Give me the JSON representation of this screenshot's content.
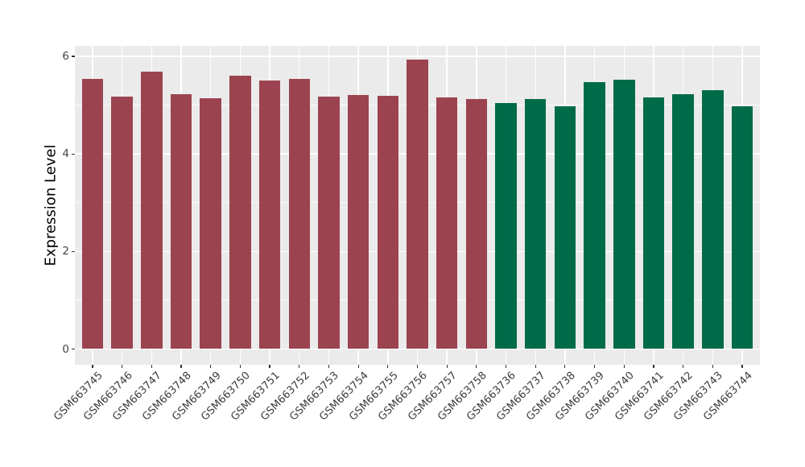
{
  "chart_data": {
    "type": "bar",
    "title": "",
    "xlabel": "",
    "ylabel": "Expression Level",
    "ylim": [
      0,
      6.2
    ],
    "yticks_major": [
      0,
      2,
      4,
      6
    ],
    "yticks_minor": [
      1,
      3,
      5
    ],
    "grid": true,
    "legend_position": "none",
    "categories": [
      "GSM663745",
      "GSM663746",
      "GSM663747",
      "GSM663748",
      "GSM663749",
      "GSM663750",
      "GSM663751",
      "GSM663752",
      "GSM663753",
      "GSM663754",
      "GSM663755",
      "GSM663756",
      "GSM663757",
      "GSM663758",
      "GSM663736",
      "GSM663737",
      "GSM663738",
      "GSM663739",
      "GSM663740",
      "GSM663741",
      "GSM663742",
      "GSM663743",
      "GSM663744"
    ],
    "values": [
      5.54,
      5.18,
      5.69,
      5.23,
      5.15,
      5.61,
      5.5,
      5.53,
      5.18,
      5.2,
      5.19,
      5.93,
      5.16,
      5.13,
      5.05,
      5.12,
      4.97,
      5.47,
      5.52,
      5.16,
      5.22,
      5.31,
      4.97
    ],
    "groups": [
      {
        "name": "group-GSM663745-GSM663758",
        "color": "#9C4350",
        "start_index": 0,
        "end_index": 13
      },
      {
        "name": "group-GSM663736-GSM663744",
        "color": "#006B49",
        "start_index": 14,
        "end_index": 22
      }
    ],
    "colors": {
      "panel_background": "#EBEBEB",
      "gridline": "#FFFFFF",
      "axis_text": "#454545",
      "axis_title": "#000000",
      "tick_mark": "#333333"
    }
  }
}
